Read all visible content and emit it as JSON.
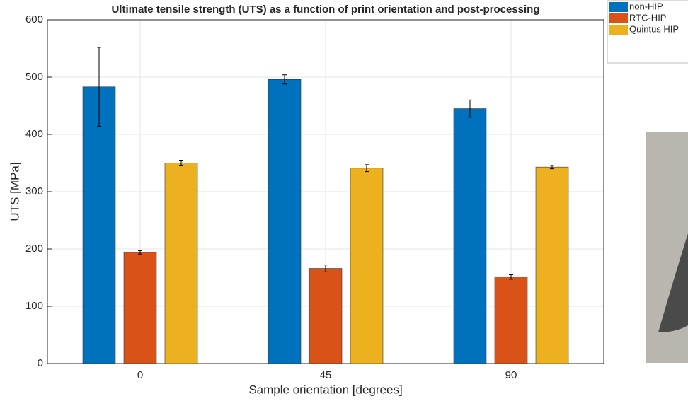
{
  "chart_data": {
    "type": "bar",
    "title": "Ultimate tensile strength (UTS) as a function of print orientation and post-processing",
    "xlabel": "Sample orientation [degrees]",
    "ylabel": "UTS [MPa]",
    "categories": [
      "0",
      "45",
      "90"
    ],
    "series": [
      {
        "name": "non-HIP",
        "color": "#0072BD",
        "values": [
          483,
          496,
          445
        ],
        "errors": [
          69,
          8,
          15
        ]
      },
      {
        "name": "RTC-HIP",
        "color": "#D95319",
        "values": [
          194,
          166,
          151
        ],
        "errors": [
          3,
          6,
          4
        ]
      },
      {
        "name": "Quintus HIP",
        "color": "#EDB120",
        "values": [
          350,
          341,
          343
        ],
        "errors": [
          5,
          6,
          3
        ]
      }
    ],
    "ylim": [
      0,
      600
    ],
    "yticks": [
      0,
      100,
      200,
      300,
      400,
      500,
      600
    ],
    "grid": true
  }
}
